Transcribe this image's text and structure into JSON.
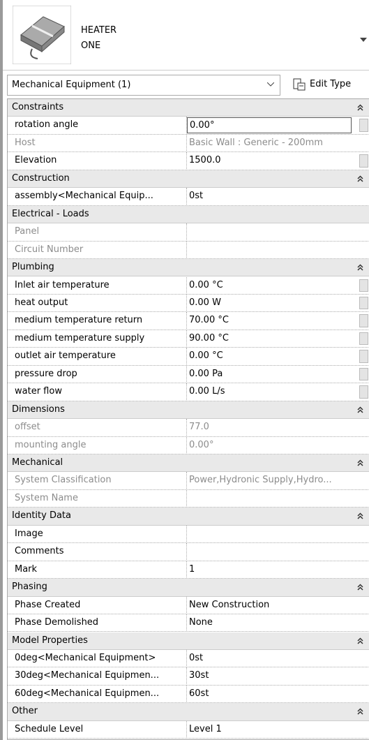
{
  "header": {
    "family": "HEATER",
    "type": "ONE"
  },
  "selector": {
    "label": "Mechanical Equipment (1)",
    "button": "Edit Type"
  },
  "groups": [
    {
      "title": "Constraints",
      "collapsible": true,
      "rows": [
        {
          "name": "rotation angle",
          "value": "0.00°",
          "editing": true,
          "assoc": true
        },
        {
          "name": "Host",
          "value": "Basic Wall : Generic - 200mm",
          "readonly": true
        },
        {
          "name": "Elevation",
          "value": "1500.0",
          "assoc": true
        }
      ]
    },
    {
      "title": "Construction",
      "collapsible": true,
      "rows": [
        {
          "name": "assembly<Mechanical Equip...",
          "value": "0st"
        }
      ]
    },
    {
      "title": "Electrical - Loads",
      "collapsible": false,
      "rows": [
        {
          "name": "Panel",
          "value": "",
          "readonly": true
        },
        {
          "name": "Circuit Number",
          "value": "",
          "readonly": true
        }
      ]
    },
    {
      "title": "Plumbing",
      "collapsible": true,
      "rows": [
        {
          "name": "Inlet air temperature",
          "value": "0.00 °C",
          "assoc": true
        },
        {
          "name": "heat output",
          "value": "0.00 W",
          "assoc": true
        },
        {
          "name": "medium temperature return",
          "value": "70.00 °C",
          "assoc": true
        },
        {
          "name": "medium temperature supply",
          "value": "90.00 °C",
          "assoc": true
        },
        {
          "name": "outlet air temperature",
          "value": "0.00 °C",
          "assoc": true
        },
        {
          "name": "pressure drop",
          "value": "0.00 Pa",
          "assoc": true
        },
        {
          "name": "water flow",
          "value": "0.00 L/s",
          "assoc": true
        }
      ]
    },
    {
      "title": "Dimensions",
      "collapsible": true,
      "rows": [
        {
          "name": "offset",
          "value": "77.0",
          "readonly": true
        },
        {
          "name": "mounting angle",
          "value": "0.00°",
          "readonly": true
        }
      ]
    },
    {
      "title": "Mechanical",
      "collapsible": true,
      "rows": [
        {
          "name": "System Classification",
          "value": "Power,Hydronic Supply,Hydro...",
          "readonly": true
        },
        {
          "name": "System Name",
          "value": "",
          "readonly": true
        }
      ]
    },
    {
      "title": "Identity Data",
      "collapsible": true,
      "rows": [
        {
          "name": "Image",
          "value": ""
        },
        {
          "name": "Comments",
          "value": ""
        },
        {
          "name": "Mark",
          "value": "1"
        }
      ]
    },
    {
      "title": "Phasing",
      "collapsible": true,
      "rows": [
        {
          "name": "Phase Created",
          "value": "New Construction"
        },
        {
          "name": "Phase Demolished",
          "value": "None"
        }
      ]
    },
    {
      "title": "Model Properties",
      "collapsible": true,
      "rows": [
        {
          "name": "0deg<Mechanical Equipment>",
          "value": "0st"
        },
        {
          "name": "30deg<Mechanical Equipmen...",
          "value": "30st"
        },
        {
          "name": "60deg<Mechanical Equipmen...",
          "value": "60st"
        }
      ]
    },
    {
      "title": "Other",
      "collapsible": true,
      "rows": [
        {
          "name": "Schedule Level",
          "value": "Level 1"
        }
      ]
    }
  ]
}
